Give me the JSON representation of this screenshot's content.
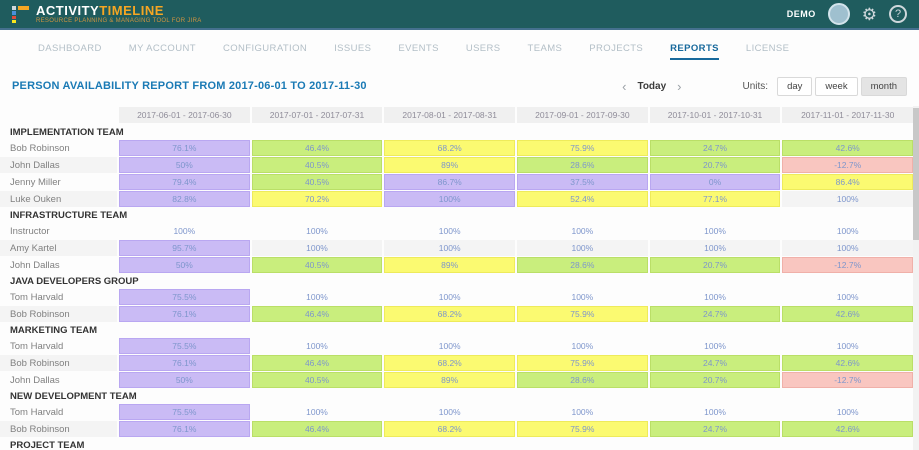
{
  "app": {
    "logo_primary": "ACTIVITY",
    "logo_secondary": "TIMELINE",
    "tagline": "RESOURCE PLANNING & MANAGING TOOL FOR JIRA",
    "user_label": "DEMO"
  },
  "nav": {
    "items": [
      {
        "label": "DASHBOARD",
        "active": false
      },
      {
        "label": "MY ACCOUNT",
        "active": false
      },
      {
        "label": "CONFIGURATION",
        "active": false
      },
      {
        "label": "ISSUES",
        "active": false
      },
      {
        "label": "EVENTS",
        "active": false
      },
      {
        "label": "USERS",
        "active": false
      },
      {
        "label": "TEAMS",
        "active": false
      },
      {
        "label": "PROJECTS",
        "active": false
      },
      {
        "label": "REPORTS",
        "active": true
      },
      {
        "label": "LICENSE",
        "active": false
      }
    ]
  },
  "report": {
    "title": "PERSON AVAILABILITY REPORT FROM 2017-06-01 TO 2017-11-30",
    "prev_label": "‹",
    "next_label": "›",
    "today_label": "Today",
    "units_label": "Units:",
    "units": [
      "day",
      "week",
      "month"
    ],
    "units_selected": "month"
  },
  "table": {
    "columns": [
      "2017-06-01 - 2017-06-30",
      "2017-07-01 - 2017-07-31",
      "2017-08-01 - 2017-08-31",
      "2017-09-01 - 2017-09-30",
      "2017-10-01 - 2017-10-31",
      "2017-11-01 - 2017-11-30"
    ],
    "groups": [
      {
        "name": "IMPLEMENTATION TEAM",
        "rows": [
          {
            "person": "Bob Robinson",
            "cells": [
              {
                "value": "76.1%",
                "color": "purple"
              },
              {
                "value": "46.4%",
                "color": "green"
              },
              {
                "value": "68.2%",
                "color": "yellow"
              },
              {
                "value": "75.9%",
                "color": "yellow"
              },
              {
                "value": "24.7%",
                "color": "green"
              },
              {
                "value": "42.6%",
                "color": "green"
              }
            ]
          },
          {
            "person": "John Dallas",
            "cells": [
              {
                "value": "50%",
                "color": "purple"
              },
              {
                "value": "40.5%",
                "color": "green"
              },
              {
                "value": "89%",
                "color": "yellow"
              },
              {
                "value": "28.6%",
                "color": "green"
              },
              {
                "value": "20.7%",
                "color": "green"
              },
              {
                "value": "-12.7%",
                "color": "pink"
              }
            ]
          },
          {
            "person": "Jenny Miller",
            "cells": [
              {
                "value": "79.4%",
                "color": "purple"
              },
              {
                "value": "40.5%",
                "color": "green"
              },
              {
                "value": "86.7%",
                "color": "purple"
              },
              {
                "value": "37.5%",
                "color": "purple"
              },
              {
                "value": "0%",
                "color": "purple"
              },
              {
                "value": "86.4%",
                "color": "yellow"
              }
            ]
          },
          {
            "person": "Luke Ouken",
            "cells": [
              {
                "value": "82.8%",
                "color": "purple"
              },
              {
                "value": "70.2%",
                "color": "yellow"
              },
              {
                "value": "100%",
                "color": "purple"
              },
              {
                "value": "52.4%",
                "color": "yellow"
              },
              {
                "value": "77.1%",
                "color": "yellow"
              },
              {
                "value": "100%",
                "color": "none"
              }
            ]
          }
        ]
      },
      {
        "name": "INFRASTRUCTURE TEAM",
        "rows": [
          {
            "person": "Instructor",
            "cells": [
              {
                "value": "100%",
                "color": "none"
              },
              {
                "value": "100%",
                "color": "none"
              },
              {
                "value": "100%",
                "color": "none"
              },
              {
                "value": "100%",
                "color": "none"
              },
              {
                "value": "100%",
                "color": "none"
              },
              {
                "value": "100%",
                "color": "none"
              }
            ]
          },
          {
            "person": "Amy Kartel",
            "cells": [
              {
                "value": "95.7%",
                "color": "purple"
              },
              {
                "value": "100%",
                "color": "none"
              },
              {
                "value": "100%",
                "color": "none"
              },
              {
                "value": "100%",
                "color": "none"
              },
              {
                "value": "100%",
                "color": "none"
              },
              {
                "value": "100%",
                "color": "none"
              }
            ]
          },
          {
            "person": "John Dallas",
            "cells": [
              {
                "value": "50%",
                "color": "purple"
              },
              {
                "value": "40.5%",
                "color": "green"
              },
              {
                "value": "89%",
                "color": "yellow"
              },
              {
                "value": "28.6%",
                "color": "green"
              },
              {
                "value": "20.7%",
                "color": "green"
              },
              {
                "value": "-12.7%",
                "color": "pink"
              }
            ]
          }
        ]
      },
      {
        "name": "JAVA DEVELOPERS GROUP",
        "rows": [
          {
            "person": "Tom Harvald",
            "cells": [
              {
                "value": "75.5%",
                "color": "purple"
              },
              {
                "value": "100%",
                "color": "none"
              },
              {
                "value": "100%",
                "color": "none"
              },
              {
                "value": "100%",
                "color": "none"
              },
              {
                "value": "100%",
                "color": "none"
              },
              {
                "value": "100%",
                "color": "none"
              }
            ]
          },
          {
            "person": "Bob Robinson",
            "cells": [
              {
                "value": "76.1%",
                "color": "purple"
              },
              {
                "value": "46.4%",
                "color": "green"
              },
              {
                "value": "68.2%",
                "color": "yellow"
              },
              {
                "value": "75.9%",
                "color": "yellow"
              },
              {
                "value": "24.7%",
                "color": "green"
              },
              {
                "value": "42.6%",
                "color": "green"
              }
            ]
          }
        ]
      },
      {
        "name": "MARKETING TEAM",
        "rows": [
          {
            "person": "Tom Harvald",
            "cells": [
              {
                "value": "75.5%",
                "color": "purple"
              },
              {
                "value": "100%",
                "color": "none"
              },
              {
                "value": "100%",
                "color": "none"
              },
              {
                "value": "100%",
                "color": "none"
              },
              {
                "value": "100%",
                "color": "none"
              },
              {
                "value": "100%",
                "color": "none"
              }
            ]
          },
          {
            "person": "Bob Robinson",
            "cells": [
              {
                "value": "76.1%",
                "color": "purple"
              },
              {
                "value": "46.4%",
                "color": "green"
              },
              {
                "value": "68.2%",
                "color": "yellow"
              },
              {
                "value": "75.9%",
                "color": "yellow"
              },
              {
                "value": "24.7%",
                "color": "green"
              },
              {
                "value": "42.6%",
                "color": "green"
              }
            ]
          },
          {
            "person": "John Dallas",
            "cells": [
              {
                "value": "50%",
                "color": "purple"
              },
              {
                "value": "40.5%",
                "color": "green"
              },
              {
                "value": "89%",
                "color": "yellow"
              },
              {
                "value": "28.6%",
                "color": "green"
              },
              {
                "value": "20.7%",
                "color": "green"
              },
              {
                "value": "-12.7%",
                "color": "pink"
              }
            ]
          }
        ]
      },
      {
        "name": "NEW DEVELOPMENT TEAM",
        "rows": [
          {
            "person": "Tom Harvald",
            "cells": [
              {
                "value": "75.5%",
                "color": "purple"
              },
              {
                "value": "100%",
                "color": "none"
              },
              {
                "value": "100%",
                "color": "none"
              },
              {
                "value": "100%",
                "color": "none"
              },
              {
                "value": "100%",
                "color": "none"
              },
              {
                "value": "100%",
                "color": "none"
              }
            ]
          },
          {
            "person": "Bob Robinson",
            "cells": [
              {
                "value": "76.1%",
                "color": "purple"
              },
              {
                "value": "46.4%",
                "color": "green"
              },
              {
                "value": "68.2%",
                "color": "yellow"
              },
              {
                "value": "75.9%",
                "color": "yellow"
              },
              {
                "value": "24.7%",
                "color": "green"
              },
              {
                "value": "42.6%",
                "color": "green"
              }
            ]
          }
        ]
      },
      {
        "name": "PROJECT TEAM",
        "rows": []
      }
    ]
  },
  "colors": {
    "header_bg": "#1f5c5e",
    "logo_accent": "#f5a623",
    "nav_active": "#17699c",
    "title_blue": "#1a7ab5",
    "cell_text": "#7e96cc",
    "purple": "#cabbf5",
    "green": "#c9ee7d",
    "yellow": "#fbfa71",
    "pink": "#f9c6c0"
  }
}
